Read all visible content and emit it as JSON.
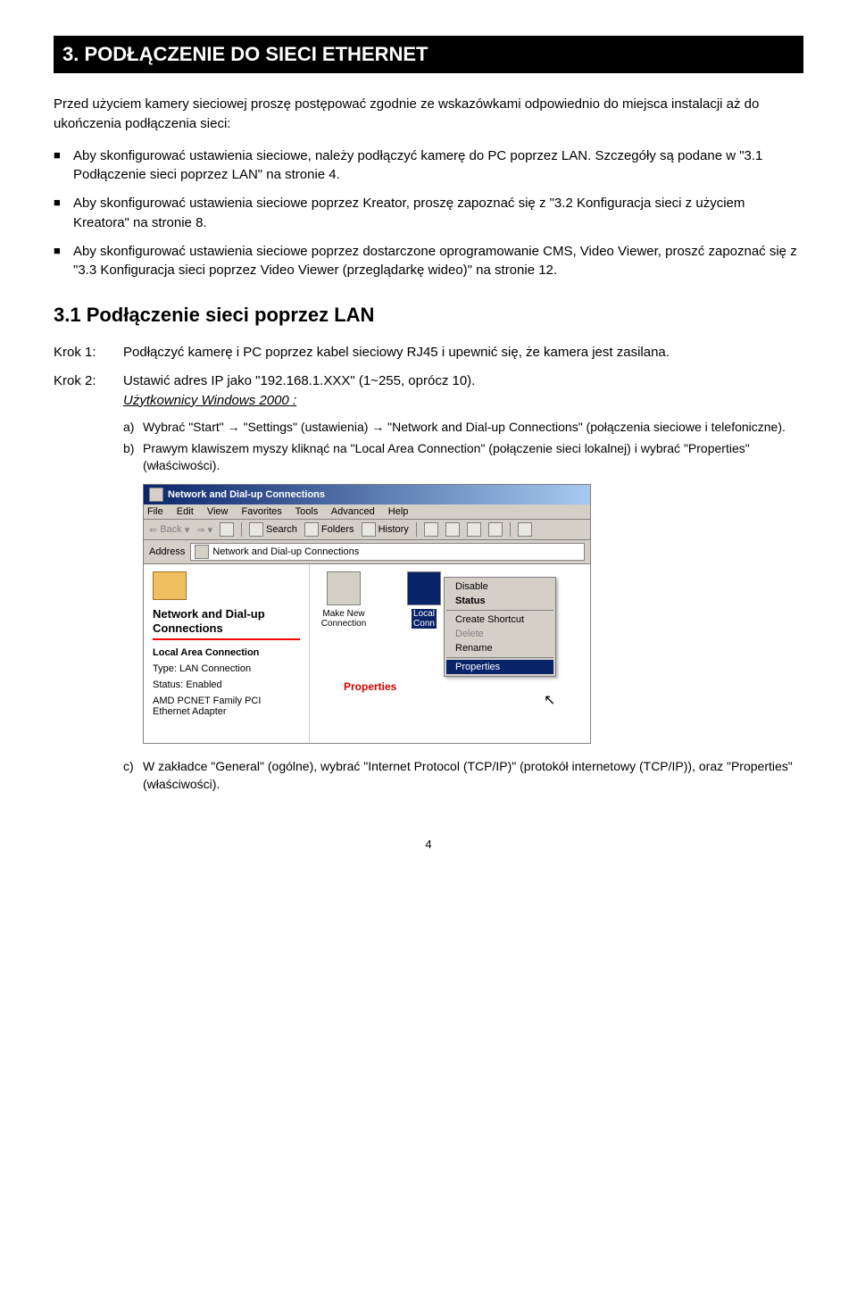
{
  "heading": "3. PODŁĄCZENIE DO SIECI ETHERNET",
  "intro": "Przed użyciem kamery sieciowej proszę postępować zgodnie ze wskazówkami odpowiednio do miejsca instalacji aż do ukończenia podłączenia sieci:",
  "bullets": [
    "Aby skonfigurować ustawienia sieciowe, należy podłączyć kamerę do PC poprzez LAN. Szczegóły są podane w \"3.1 Podłączenie sieci poprzez LAN\" na stronie 4.",
    "Aby skonfigurować ustawienia sieciowe poprzez Kreator, proszę zapoznać się z \"3.2 Konfiguracja sieci z użyciem Kreatora\" na stronie 8.",
    "Aby skonfigurować ustawienia sieciowe poprzez dostarczone oprogramowanie CMS, Video Viewer, proszć zapoznać się z \"3.3 Konfiguracja sieci poprzez Video Viewer (przeglądarkę wideo)\" na stronie 12."
  ],
  "subheading": "3.1 Podłączenie sieci poprzez LAN",
  "steps": {
    "k1_label": "Krok 1:",
    "k1_body": "Podłączyć kamerę i PC poprzez kabel sieciowy RJ45 i upewnić się, że kamera jest zasilana.",
    "k2_label": "Krok 2:",
    "k2_line1": "Ustawić adres IP jako \"192.168.1.XXX\" (1~255, oprócz 10).",
    "k2_line2": "Użytkownicy Windows 2000 :"
  },
  "sublist": {
    "a_letter": "a)",
    "a_text": "Wybrać \"Start\" → \"Settings\" (ustawienia) → \"Network and Dial-up Connections\" (połączenia sieciowe i telefoniczne).",
    "b_letter": "b)",
    "b_text": "Prawym klawiszem myszy kliknąć na \"Local Area Connection\" (połączenie sieci lokalnej) i wybrać \"Properties\" (właściwości).",
    "c_letter": "c)",
    "c_text": "W zakładce \"General\" (ogólne), wybrać \"Internet Protocol (TCP/IP)\" (protokół internetowy (TCP/IP)), oraz \"Properties\" (właściwości)."
  },
  "screenshot": {
    "title": "Network and Dial-up Connections",
    "menu": [
      "File",
      "Edit",
      "View",
      "Favorites",
      "Tools",
      "Advanced",
      "Help"
    ],
    "toolbar": {
      "back": "Back",
      "search": "Search",
      "folders": "Folders",
      "history": "History"
    },
    "address_label": "Address",
    "address_value": "Network and Dial-up Connections",
    "left": {
      "title": "Network and Dial-up Connections",
      "line1": "Local Area Connection",
      "line2": "Type: LAN Connection",
      "line3": "Status: Enabled",
      "line4": "AMD PCNET Family PCI Ethernet Adapter"
    },
    "icons": {
      "i1a": "Make New",
      "i1b": "Connection",
      "i2a": "Local",
      "i2b": "Conn"
    },
    "ctx": {
      "disable": "Disable",
      "status": "Status",
      "shortcut": "Create Shortcut",
      "delete": "Delete",
      "rename": "Rename",
      "properties": "Properties"
    },
    "props_label": "Properties",
    "cursor": "↖"
  },
  "page_num": "4"
}
